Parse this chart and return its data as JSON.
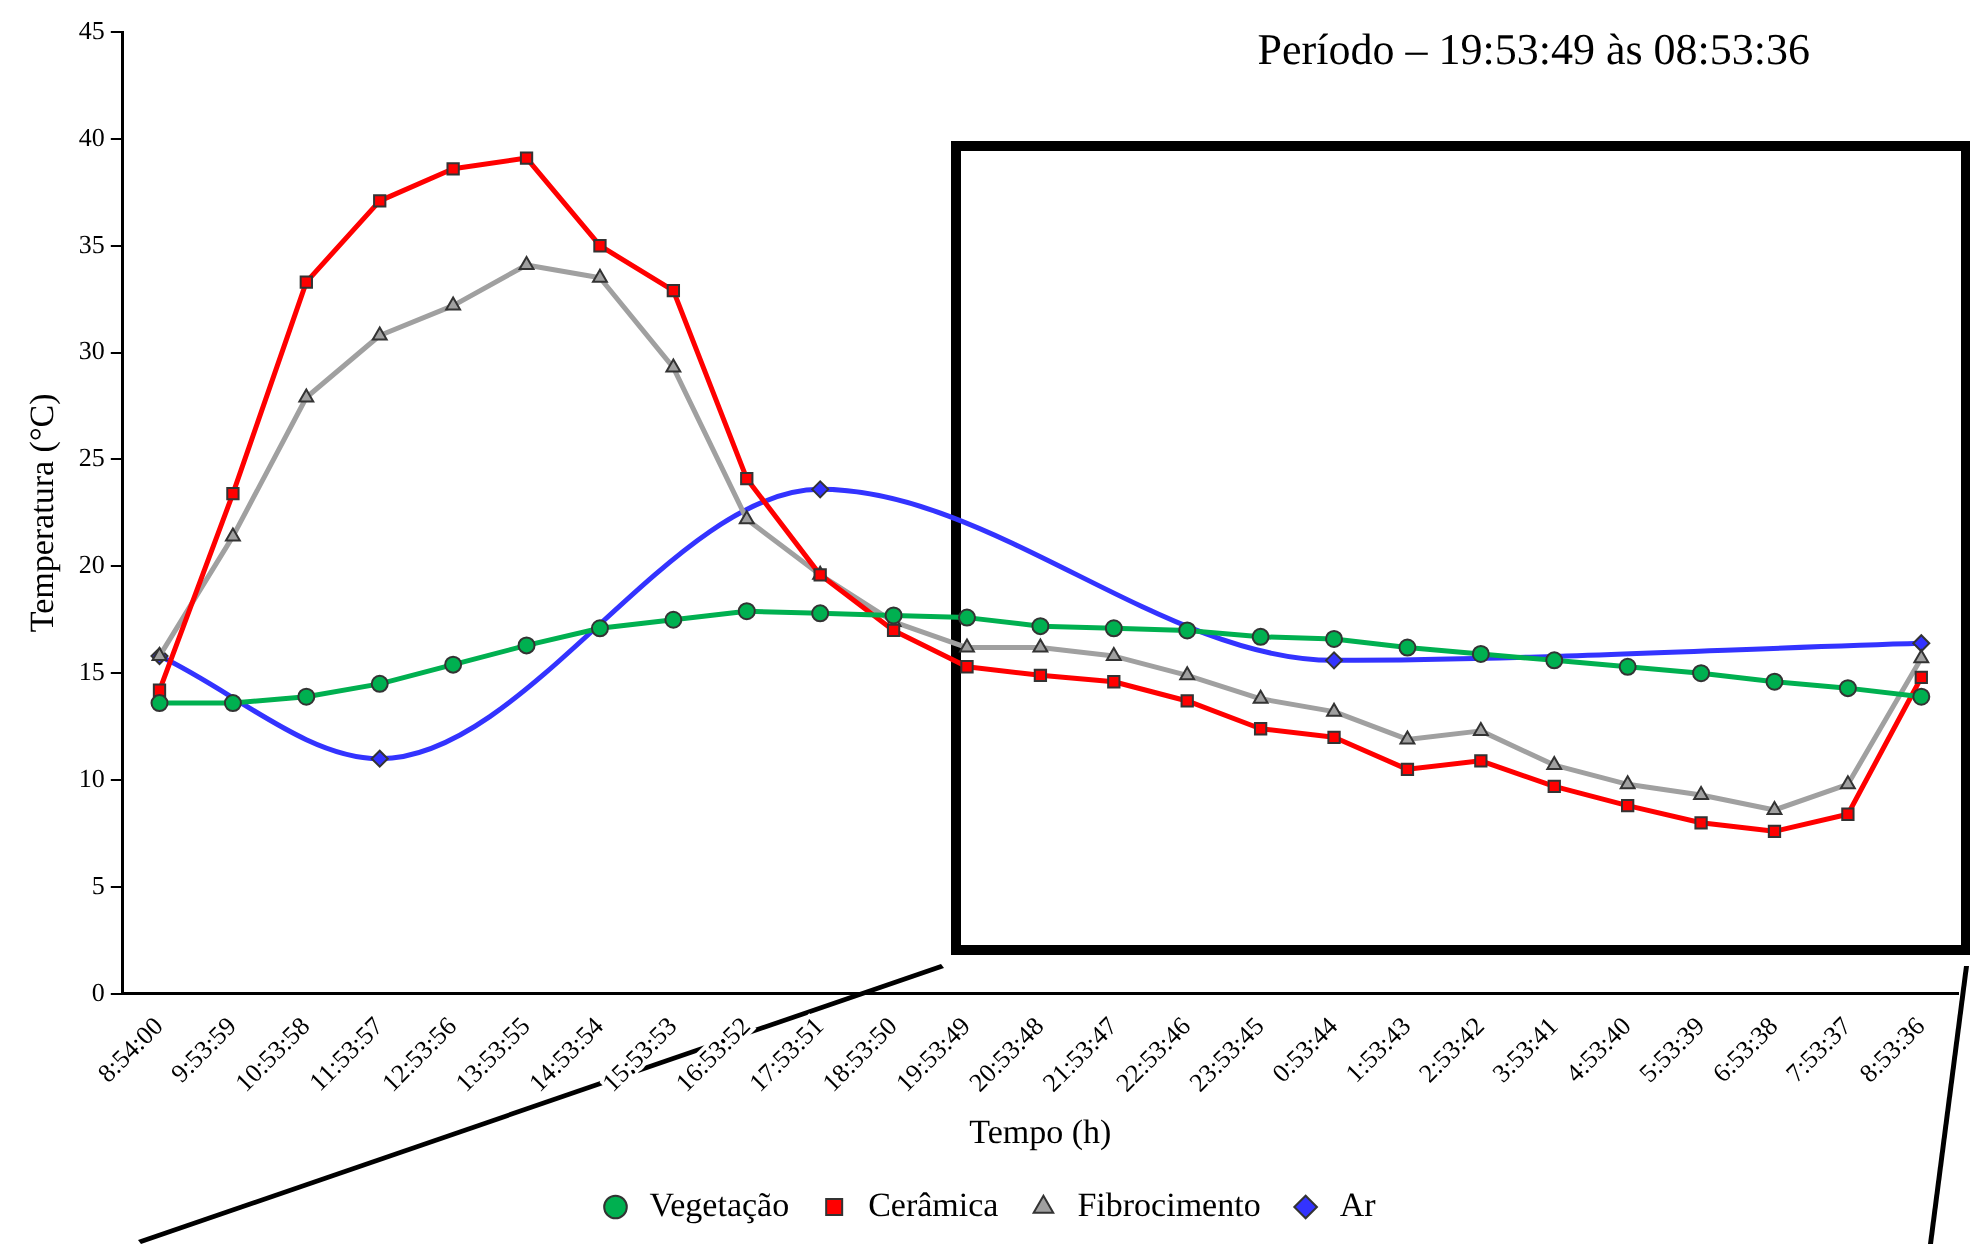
{
  "chart_data": {
    "type": "line",
    "title": "Período – 19:53:49 às 08:53:36",
    "xlabel": "Tempo (h)",
    "ylabel": "Temperatura (°C)",
    "categories": [
      "8:54:00",
      "9:53:59",
      "10:53:58",
      "11:53:57",
      "12:53:56",
      "13:53:55",
      "14:53:54",
      "15:53:53",
      "16:53:52",
      "17:53:51",
      "18:53:50",
      "19:53:49",
      "20:53:48",
      "21:53:47",
      "22:53:46",
      "23:53:45",
      "0:53:44",
      "1:53:43",
      "2:53:42",
      "3:53:41",
      "4:53:40",
      "5:53:39",
      "6:53:38",
      "7:53:37",
      "8:53:36"
    ],
    "series": [
      {
        "name": "Vegetação",
        "color": "#00b050",
        "marker": "circle",
        "values": [
          13.6,
          13.6,
          13.9,
          14.5,
          15.4,
          16.3,
          17.1,
          17.5,
          17.9,
          17.8,
          17.7,
          17.6,
          17.2,
          17.1,
          17.0,
          16.7,
          16.6,
          16.2,
          15.9,
          15.6,
          15.3,
          15.0,
          14.6,
          14.3,
          13.9
        ]
      },
      {
        "name": "Cerâmica",
        "color": "#ff0000",
        "marker": "square",
        "values": [
          14.2,
          23.4,
          33.3,
          37.1,
          38.6,
          39.1,
          35.0,
          32.9,
          24.1,
          19.6,
          17.0,
          15.3,
          14.9,
          14.6,
          13.7,
          12.4,
          12.0,
          10.5,
          10.9,
          9.7,
          8.8,
          8.0,
          7.6,
          8.4,
          14.8
        ]
      },
      {
        "name": "Fibrocimento",
        "color": "#a0a0a0",
        "marker": "triangle",
        "values": [
          15.8,
          21.4,
          27.9,
          30.8,
          32.2,
          34.1,
          33.5,
          29.3,
          22.2,
          19.6,
          17.4,
          16.2,
          16.2,
          15.8,
          14.9,
          13.8,
          13.2,
          11.9,
          12.3,
          10.7,
          9.8,
          9.3,
          8.6,
          9.8,
          15.7
        ]
      },
      {
        "name": "Ar",
        "color": "#3333ff",
        "marker": "diamond",
        "values": [
          15.8,
          null,
          null,
          11.0,
          null,
          null,
          null,
          null,
          null,
          23.6,
          null,
          null,
          null,
          null,
          null,
          null,
          15.6,
          null,
          null,
          null,
          null,
          null,
          null,
          null,
          16.4
        ]
      }
    ],
    "ylim": [
      0,
      45
    ],
    "yticks": [
      0,
      5,
      10,
      15,
      20,
      25,
      30,
      35,
      40,
      45
    ],
    "grid": false,
    "legend": "bottom"
  }
}
